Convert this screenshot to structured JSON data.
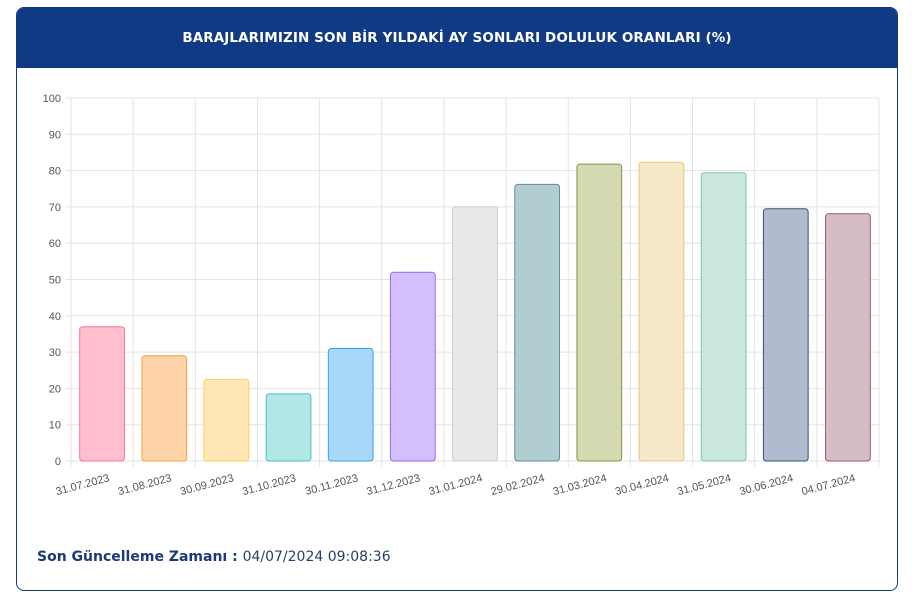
{
  "header": {
    "title": "BARAJLARIMIZIN SON BİR YILDAKİ AY SONLARI DOLULUK ORANLARI (%)"
  },
  "footer": {
    "label": "Son Güncelleme Zamanı",
    "separator": " : ",
    "value": "04/07/2024 09:08:36"
  },
  "chart_data": {
    "type": "bar",
    "title": "BARAJLARIMIZIN SON BİR YILDAKİ AY SONLARI DOLULUK ORANLARI (%)",
    "categories": [
      "31.07.2023",
      "31.08.2023",
      "30.09.2023",
      "31.10.2023",
      "30.11.2023",
      "31.12.2023",
      "31.01.2024",
      "29.02.2024",
      "31.03.2024",
      "30.04.2024",
      "31.05.2024",
      "30.06.2024",
      "04.07.2024"
    ],
    "values": [
      37,
      29,
      22.5,
      18.5,
      31,
      52,
      70,
      76.2,
      81.8,
      82.3,
      79.4,
      69.5,
      68.1
    ],
    "ylim": [
      0,
      100
    ],
    "yticks": [
      0,
      10,
      20,
      30,
      40,
      50,
      60,
      70,
      80,
      90,
      100
    ],
    "grid": true,
    "colors": {
      "fills": [
        "#ffbfcf",
        "#ffd4a8",
        "#ffe8b6",
        "#b1e8e5",
        "#a9d7f8",
        "#d3bffe",
        "#e8e9eb",
        "#b2cdd1",
        "#d5d9b1",
        "#f6e9c9",
        "#c9e7df",
        "#b0bccd",
        "#d6bdc5"
      ],
      "borders": [
        "#ff6f93",
        "#ff9f40",
        "#ffcd56",
        "#4bc0c0",
        "#36a2eb",
        "#9966ff",
        "#c9cbcf",
        "#5f8f96",
        "#8a9147",
        "#e8c679",
        "#7cc4b0",
        "#3b4f7a",
        "#9c5670"
      ]
    }
  }
}
